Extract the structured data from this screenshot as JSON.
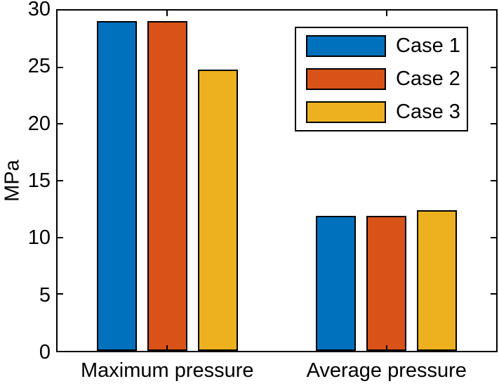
{
  "figure": {
    "background": "#ffffff",
    "axis_color": "#000000",
    "text_color": "#000000"
  },
  "chart_data": {
    "type": "bar",
    "title": "",
    "xlabel": "",
    "ylabel": "MPa",
    "categories": [
      "Maximum pressure",
      "Average pressure"
    ],
    "series": [
      {
        "name": "Case 1",
        "color": "#0072BD",
        "values": [
          29.1,
          11.9
        ]
      },
      {
        "name": "Case 2",
        "color": "#D95319",
        "values": [
          29.1,
          11.9
        ]
      },
      {
        "name": "Case 3",
        "color": "#EDB120",
        "values": [
          24.8,
          12.4
        ]
      }
    ],
    "ylim": [
      0,
      30
    ],
    "yticks": [
      0,
      5,
      10,
      15,
      20,
      25,
      30
    ],
    "grid": false,
    "bar_edge_color": "#000000",
    "legend": {
      "position": "top-right",
      "entries": [
        "Case 1",
        "Case 2",
        "Case 3"
      ]
    }
  }
}
